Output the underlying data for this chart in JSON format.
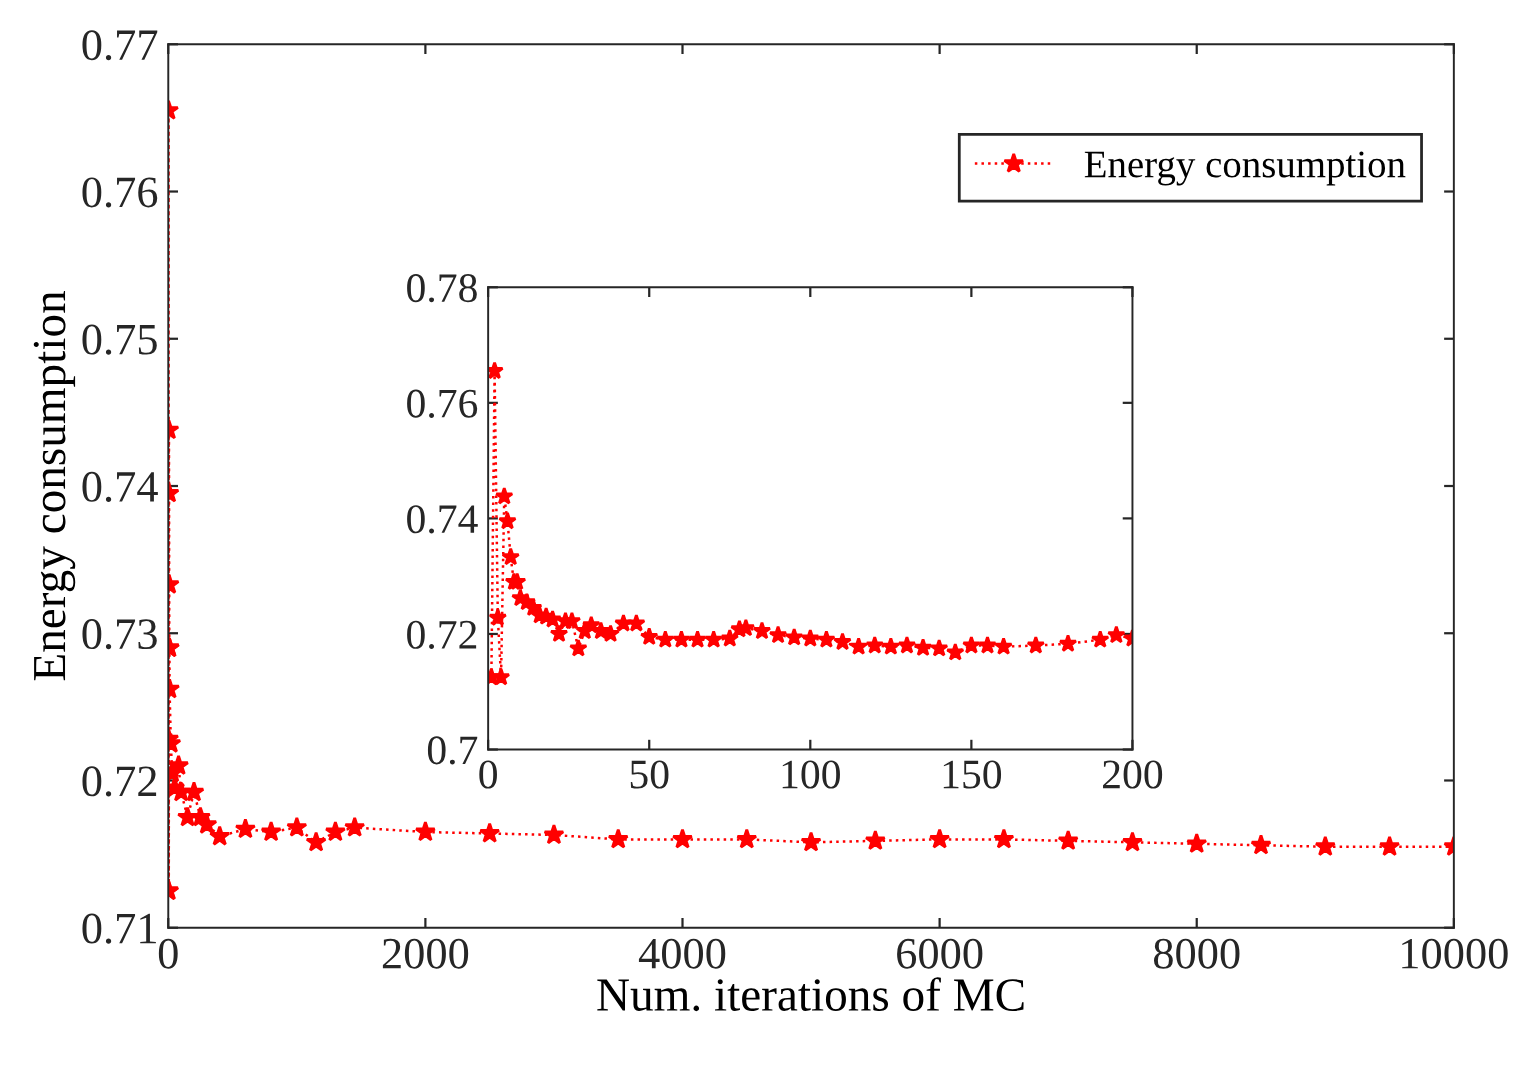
{
  "chart_data": [
    {
      "type": "line",
      "xlabel": "Num. iterations of MC",
      "ylabel": "Energy consumption",
      "xlim": [
        0,
        10000
      ],
      "xticks": [
        0,
        2000,
        4000,
        6000,
        8000,
        10000
      ],
      "ylim": [
        0.71,
        0.77
      ],
      "yticks": [
        0.71,
        0.72,
        0.73,
        0.74,
        0.75,
        0.76,
        0.77
      ],
      "grid": false,
      "legend": "top right",
      "marker": "star",
      "line_style": "dotted",
      "series": [
        {
          "name": "Energy consumption",
          "color": "#ff0000",
          "x": [
            1,
            2,
            3,
            4,
            5,
            6,
            7,
            8,
            9,
            10,
            20,
            30,
            50,
            80,
            100,
            150,
            200,
            250,
            300,
            400,
            600,
            800,
            1000,
            1150,
            1300,
            1450,
            2000,
            2500,
            3000,
            3500,
            4000,
            4500,
            5000,
            5500,
            6000,
            6500,
            7000,
            7500,
            8000,
            8500,
            9000,
            9500,
            10000
          ],
          "values": [
            0.7125,
            0.7655,
            0.7228,
            0.7125,
            0.7438,
            0.7395,
            0.7333,
            0.729,
            0.729,
            0.7262,
            0.7225,
            0.7205,
            0.7195,
            0.721,
            0.7192,
            0.7175,
            0.7192,
            0.7175,
            0.717,
            0.7162,
            0.7167,
            0.7165,
            0.7168,
            0.7158,
            0.7165,
            0.7168,
            0.7165,
            0.7164,
            0.7163,
            0.716,
            0.716,
            0.716,
            0.7158,
            0.7159,
            0.716,
            0.716,
            0.7159,
            0.7158,
            0.7157,
            0.7156,
            0.7155,
            0.7155,
            0.7155
          ]
        }
      ]
    },
    {
      "type": "line",
      "xlim": [
        0,
        200
      ],
      "xticks": [
        0,
        50,
        100,
        150,
        200
      ],
      "ylim": [
        0.7,
        0.78
      ],
      "yticks": [
        {
          "value": 0.7,
          "label": "0.7"
        },
        0.72,
        0.74,
        0.76,
        0.78
      ],
      "grid": false,
      "marker": "star",
      "line_style": "dotted",
      "series": [
        {
          "color": "#ff0000",
          "x": [
            1,
            2,
            3,
            4,
            5,
            6,
            7,
            8,
            9,
            10,
            12,
            14,
            16,
            18,
            20,
            22,
            24,
            26,
            28,
            30,
            32,
            35,
            38,
            42,
            46,
            50,
            55,
            60,
            65,
            70,
            75,
            78,
            80,
            85,
            90,
            95,
            100,
            105,
            110,
            115,
            120,
            125,
            130,
            135,
            140,
            145,
            150,
            155,
            160,
            170,
            180,
            190,
            195,
            200
          ],
          "values": [
            0.7125,
            0.7655,
            0.7228,
            0.7125,
            0.7438,
            0.7395,
            0.7333,
            0.729,
            0.729,
            0.7262,
            0.7255,
            0.7245,
            0.7232,
            0.723,
            0.7225,
            0.72,
            0.7222,
            0.7222,
            0.7175,
            0.7205,
            0.7215,
            0.7205,
            0.72,
            0.7218,
            0.7218,
            0.7195,
            0.719,
            0.719,
            0.719,
            0.719,
            0.7192,
            0.7208,
            0.721,
            0.7205,
            0.7198,
            0.7194,
            0.7192,
            0.719,
            0.7186,
            0.7178,
            0.718,
            0.7178,
            0.718,
            0.7176,
            0.7175,
            0.7168,
            0.718,
            0.718,
            0.7178,
            0.718,
            0.7183,
            0.719,
            0.7198,
            0.7192
          ]
        }
      ]
    }
  ]
}
